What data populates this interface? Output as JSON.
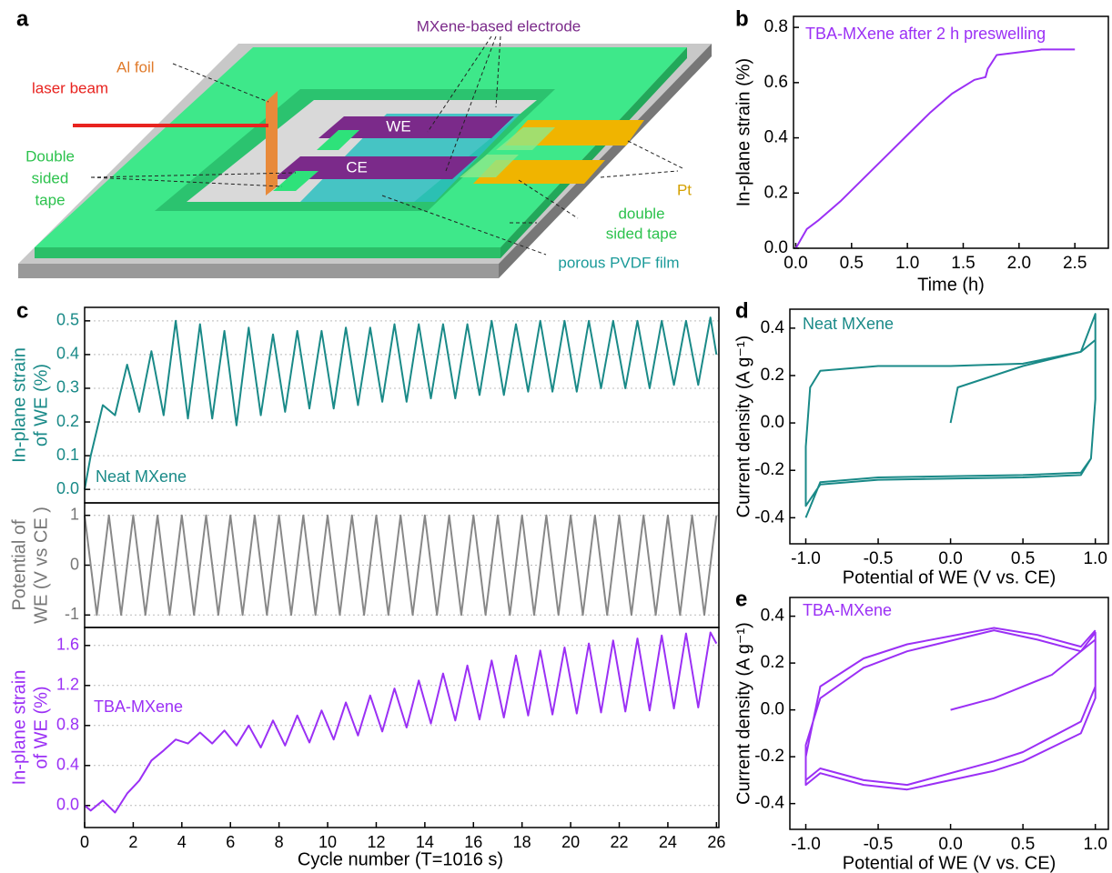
{
  "diagram": {
    "panel_label": "a",
    "mxene_electrode": "MXene-based electrode",
    "al_foil": "Al foil",
    "laser_beam": "laser beam",
    "we": "WE",
    "ce": "CE",
    "double_sided_tape_left": [
      "Double",
      "sided",
      "tape"
    ],
    "pt": "Pt",
    "double_sided_tape_right": [
      "double",
      "sided tape"
    ],
    "pvdf": "porous PVDF film"
  },
  "chart_data": [
    {
      "type": "line",
      "panel_label": "b",
      "annotation": "TBA-MXene after 2 h preswelling",
      "xlabel": "Time (h)",
      "ylabel": [
        "In-plane strain (%)"
      ],
      "xlim": [
        -0.02,
        2.8
      ],
      "ylim": [
        0,
        0.84
      ],
      "xticks": [
        {
          "value": 0,
          "label": "0.0"
        },
        0.5,
        {
          "value": 1,
          "label": "1.0"
        },
        1.5,
        {
          "value": 2,
          "label": "2.0"
        },
        2.5
      ],
      "yticks": [
        {
          "value": 0,
          "label": "0.0"
        },
        0.2,
        0.4,
        0.6,
        0.8
      ],
      "x": [
        0,
        0.1,
        0.2,
        0.4,
        0.6,
        0.8,
        1.0,
        1.2,
        1.4,
        1.6,
        1.7,
        1.72,
        1.8,
        2.0,
        2.2,
        2.5
      ],
      "series": [
        {
          "color": "#9b30f5",
          "values": [
            0,
            0.07,
            0.1,
            0.17,
            0.25,
            0.33,
            0.41,
            0.49,
            0.56,
            0.61,
            0.62,
            0.65,
            0.7,
            0.71,
            0.72,
            0.72
          ]
        }
      ]
    },
    {
      "type": "line",
      "panel_label": "c",
      "annotation": "Neat MXene",
      "ylabel": [
        "In-plane strain",
        "of WE (%)"
      ],
      "axis_color": "#1a8a88",
      "grid": true,
      "xlim": [
        0,
        26.1
      ],
      "ylim": [
        -0.04,
        0.54
      ],
      "yticks": [
        {
          "value": 0,
          "label": "0.0"
        },
        0.1,
        0.2,
        0.3,
        0.4,
        0.5
      ],
      "x": [
        0,
        0.25,
        0.75,
        1.25,
        1.75,
        2.25,
        2.75,
        3.25,
        3.75,
        4.25,
        4.75,
        5.25,
        5.75,
        6.25,
        6.75,
        7.25,
        7.75,
        8.25,
        8.75,
        9.25,
        9.75,
        10.25,
        10.75,
        11.25,
        11.75,
        12.25,
        12.75,
        13.25,
        13.75,
        14.25,
        14.75,
        15.25,
        15.75,
        16.25,
        16.75,
        17.25,
        17.75,
        18.25,
        18.75,
        19.25,
        19.75,
        20.25,
        20.75,
        21.25,
        21.75,
        22.25,
        22.75,
        23.25,
        23.75,
        24.25,
        24.75,
        25.25,
        25.75,
        26
      ],
      "series": [
        {
          "color": "#1a8a88",
          "values": [
            0,
            0.1,
            0.25,
            0.22,
            0.37,
            0.23,
            0.41,
            0.22,
            0.5,
            0.21,
            0.49,
            0.21,
            0.47,
            0.19,
            0.48,
            0.22,
            0.46,
            0.23,
            0.47,
            0.24,
            0.47,
            0.24,
            0.48,
            0.25,
            0.48,
            0.26,
            0.49,
            0.26,
            0.49,
            0.27,
            0.49,
            0.27,
            0.49,
            0.28,
            0.5,
            0.28,
            0.49,
            0.29,
            0.5,
            0.29,
            0.5,
            0.29,
            0.5,
            0.3,
            0.5,
            0.3,
            0.5,
            0.3,
            0.5,
            0.31,
            0.5,
            0.31,
            0.51,
            0.4
          ]
        }
      ]
    },
    {
      "type": "line",
      "ylabel": [
        "Potential of",
        "WE (V vs CE )"
      ],
      "axis_color": "#777777",
      "grid": true,
      "xlim": [
        0,
        26.1
      ],
      "ylim": [
        -1.25,
        1.25
      ],
      "yticks": [
        -1,
        0,
        1
      ],
      "x": [
        0,
        0.5,
        1,
        1.5,
        2,
        2.5,
        3,
        3.5,
        4,
        4.5,
        5,
        5.5,
        6,
        6.5,
        7,
        7.5,
        8,
        8.5,
        9,
        9.5,
        10,
        10.5,
        11,
        11.5,
        12,
        12.5,
        13,
        13.5,
        14,
        14.5,
        15,
        15.5,
        16,
        16.5,
        17,
        17.5,
        18,
        18.5,
        19,
        19.5,
        20,
        20.5,
        21,
        21.5,
        22,
        22.5,
        23,
        23.5,
        24,
        24.5,
        25,
        25.5,
        26
      ],
      "series": [
        {
          "color": "#888888",
          "values": [
            1,
            -1,
            1,
            -1,
            1,
            -1,
            1,
            -1,
            1,
            -1,
            1,
            -1,
            1,
            -1,
            1,
            -1,
            1,
            -1,
            1,
            -1,
            1,
            -1,
            1,
            -1,
            1,
            -1,
            1,
            -1,
            1,
            -1,
            1,
            -1,
            1,
            -1,
            1,
            -1,
            1,
            -1,
            1,
            -1,
            1,
            -1,
            1,
            -1,
            1,
            -1,
            1,
            -1,
            1,
            -1,
            1,
            -1,
            1
          ]
        }
      ]
    },
    {
      "type": "line",
      "annotation": "TBA-MXene",
      "xlabel": "Cycle number (T=1016 s)",
      "ylabel": [
        "In-plane strain",
        "of WE (%)"
      ],
      "axis_color": "#9b30f5",
      "grid": true,
      "xlim": [
        0,
        26.1
      ],
      "ylim": [
        -0.22,
        1.78
      ],
      "xticks": [
        0,
        2,
        4,
        6,
        8,
        10,
        12,
        14,
        16,
        18,
        20,
        22,
        24,
        26
      ],
      "yticks": [
        {
          "value": 0,
          "label": "0.0"
        },
        0.4,
        0.8,
        1.2,
        1.6
      ],
      "x": [
        0,
        0.25,
        0.75,
        1.25,
        1.75,
        2.25,
        2.75,
        3.25,
        3.75,
        4.25,
        4.75,
        5.25,
        5.75,
        6.25,
        6.75,
        7.25,
        7.75,
        8.25,
        8.75,
        9.25,
        9.75,
        10.25,
        10.75,
        11.25,
        11.75,
        12.25,
        12.75,
        13.25,
        13.75,
        14.25,
        14.75,
        15.25,
        15.75,
        16.25,
        16.75,
        17.25,
        17.75,
        18.25,
        18.75,
        19.25,
        19.75,
        20.25,
        20.75,
        21.25,
        21.75,
        22.25,
        22.75,
        23.25,
        23.75,
        24.25,
        24.75,
        25.25,
        25.75,
        26
      ],
      "series": [
        {
          "color": "#9b30f5",
          "values": [
            0,
            -0.05,
            0.05,
            -0.07,
            0.12,
            0.25,
            0.45,
            0.55,
            0.66,
            0.62,
            0.73,
            0.62,
            0.75,
            0.6,
            0.8,
            0.58,
            0.85,
            0.6,
            0.9,
            0.63,
            0.95,
            0.66,
            1.03,
            0.7,
            1.1,
            0.74,
            1.17,
            0.78,
            1.25,
            0.82,
            1.32,
            0.85,
            1.4,
            0.86,
            1.45,
            0.88,
            1.5,
            0.9,
            1.55,
            0.91,
            1.58,
            0.92,
            1.62,
            0.93,
            1.65,
            0.94,
            1.67,
            0.95,
            1.7,
            0.97,
            1.72,
            0.98,
            1.73,
            1.62
          ]
        }
      ]
    },
    {
      "type": "line",
      "panel_label": "d",
      "annotation": "Neat MXene",
      "xlabel": "Potential of WE (V vs. CE)",
      "ylabel": [
        "Current density (A g⁻¹)"
      ],
      "xlim": [
        -1.11,
        1.09
      ],
      "ylim": [
        -0.51,
        0.48
      ],
      "xticks": [
        {
          "value": -1,
          "label": "-1.0"
        },
        -0.5,
        {
          "value": 0,
          "label": "0.0"
        },
        0.5,
        {
          "value": 1,
          "label": "1.0"
        }
      ],
      "yticks": [
        -0.4,
        -0.2,
        {
          "value": 0,
          "label": "0.0"
        },
        0.2,
        0.4
      ],
      "x": [
        0,
        0.05,
        0.5,
        0.9,
        1.0,
        1.0,
        0.97,
        0.9,
        0.5,
        -0.5,
        -0.9,
        -1.0,
        -1.0,
        -0.97,
        -0.9,
        -0.5,
        0,
        0.5,
        0.9,
        1.0,
        1.0,
        0.97,
        0.9,
        0.5,
        -0.5,
        -0.9,
        -1.0
      ],
      "series": [
        {
          "color": "#1a8a88",
          "values": [
            0,
            0.15,
            0.24,
            0.3,
            0.46,
            0.1,
            -0.15,
            -0.22,
            -0.23,
            -0.24,
            -0.26,
            -0.35,
            -0.1,
            0.15,
            0.22,
            0.24,
            0.24,
            0.25,
            0.3,
            0.35,
            0.1,
            -0.15,
            -0.21,
            -0.22,
            -0.23,
            -0.25,
            -0.4
          ]
        }
      ]
    },
    {
      "type": "line",
      "panel_label": "e",
      "annotation": "TBA-MXene",
      "xlabel": "Potential of WE (V vs. CE)",
      "ylabel": [
        "Current density (A g⁻¹)"
      ],
      "xlim": [
        -1.11,
        1.09
      ],
      "ylim": [
        -0.51,
        0.48
      ],
      "xticks": [
        {
          "value": -1,
          "label": "-1.0"
        },
        -0.5,
        {
          "value": 0,
          "label": "0.0"
        },
        0.5,
        {
          "value": 1,
          "label": "1.0"
        }
      ],
      "yticks": [
        -0.4,
        -0.2,
        {
          "value": 0,
          "label": "0.0"
        },
        0.2,
        0.4
      ],
      "x": [
        0,
        0.3,
        0.7,
        1.0,
        1.0,
        0.9,
        0.5,
        0.3,
        -0.3,
        -0.6,
        -0.9,
        -1.0,
        -1.0,
        -0.9,
        -0.6,
        -0.3,
        0.3,
        0.6,
        0.9,
        1.0,
        1.0,
        0.9,
        0.5,
        0.3,
        -0.3,
        -0.6,
        -0.9,
        -1.0,
        -1.0,
        -0.9,
        -0.6,
        -0.3,
        0.3,
        0.6,
        0.9,
        1.0
      ],
      "series": [
        {
          "color": "#9b30f5",
          "values": [
            0,
            0.05,
            0.15,
            0.3,
            0.1,
            -0.05,
            -0.18,
            -0.22,
            -0.32,
            -0.3,
            -0.25,
            -0.3,
            -0.15,
            0.05,
            0.18,
            0.25,
            0.34,
            0.3,
            0.25,
            0.33,
            0.05,
            -0.1,
            -0.22,
            -0.26,
            -0.34,
            -0.32,
            -0.27,
            -0.32,
            -0.2,
            0.1,
            0.22,
            0.28,
            0.35,
            0.32,
            0.27,
            0.34
          ]
        }
      ]
    }
  ]
}
